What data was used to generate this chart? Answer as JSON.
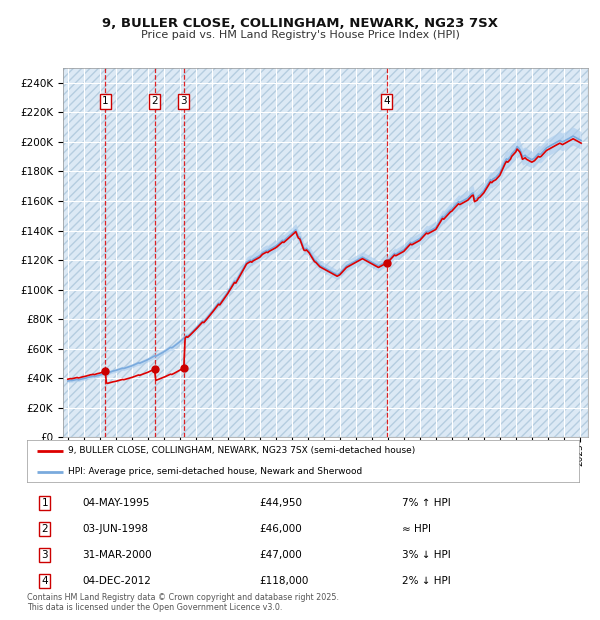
{
  "title": "9, BULLER CLOSE, COLLINGHAM, NEWARK, NG23 7SX",
  "subtitle": "Price paid vs. HM Land Registry's House Price Index (HPI)",
  "plot_bg_color": "#dce9f5",
  "grid_color": "#ffffff",
  "ylim": [
    0,
    250000
  ],
  "yticks": [
    0,
    20000,
    40000,
    60000,
    80000,
    100000,
    120000,
    140000,
    160000,
    180000,
    200000,
    220000,
    240000
  ],
  "xlim_start": 1992.7,
  "xlim_end": 2025.5,
  "sales": [
    {
      "year": 1995.34,
      "price": 44950,
      "label": "1"
    },
    {
      "year": 1998.42,
      "price": 46000,
      "label": "2"
    },
    {
      "year": 2000.25,
      "price": 47000,
      "label": "3"
    },
    {
      "year": 2012.92,
      "price": 118000,
      "label": "4"
    }
  ],
  "hpi_line_color": "#7aaadd",
  "hpi_band_color": "#aaccee",
  "sale_line_color": "#dd0000",
  "sale_dot_color": "#cc0000",
  "legend_sale_label": "9, BULLER CLOSE, COLLINGHAM, NEWARK, NG23 7SX (semi-detached house)",
  "legend_hpi_label": "HPI: Average price, semi-detached house, Newark and Sherwood",
  "table_rows": [
    {
      "num": "1",
      "date": "04-MAY-1995",
      "price": "£44,950",
      "relation": "7% ↑ HPI"
    },
    {
      "num": "2",
      "date": "03-JUN-1998",
      "price": "£46,000",
      "relation": "≈ HPI"
    },
    {
      "num": "3",
      "date": "31-MAR-2000",
      "price": "£47,000",
      "relation": "3% ↓ HPI"
    },
    {
      "num": "4",
      "date": "04-DEC-2012",
      "price": "£118,000",
      "relation": "2% ↓ HPI"
    }
  ],
  "footer": "Contains HM Land Registry data © Crown copyright and database right 2025.\nThis data is licensed under the Open Government Licence v3.0.",
  "hpi_monthly": {
    "start_year": 1993.0,
    "step": 0.0833,
    "values": [
      38000,
      38200,
      38400,
      38300,
      38500,
      38700,
      38900,
      39100,
      38800,
      39000,
      39300,
      39500,
      39700,
      39900,
      40100,
      40400,
      40600,
      40900,
      41000,
      41200,
      41000,
      41300,
      41600,
      41800,
      42000,
      42300,
      42700,
      43100,
      43500,
      43800,
      43600,
      43900,
      44200,
      44500,
      44800,
      45000,
      45200,
      45500,
      45800,
      46100,
      46400,
      46700,
      46500,
      46800,
      47100,
      47400,
      47700,
      48000,
      48300,
      48700,
      49100,
      49500,
      49900,
      50300,
      50100,
      50500,
      50900,
      51300,
      51700,
      52100,
      52500,
      53000,
      53500,
      54000,
      54500,
      55000,
      54800,
      55300,
      55800,
      56300,
      56800,
      57300,
      57800,
      58400,
      59000,
      59600,
      60200,
      60800,
      60500,
      61100,
      61800,
      62500,
      63200,
      63900,
      64600,
      65400,
      66200,
      67000,
      67800,
      68600,
      68300,
      69100,
      70000,
      70900,
      71800,
      72700,
      73600,
      74600,
      75600,
      76600,
      77600,
      78600,
      78300,
      79300,
      80400,
      81500,
      82600,
      83700,
      84800,
      86000,
      87200,
      88400,
      89600,
      90800,
      90400,
      91700,
      93000,
      94300,
      95600,
      96900,
      98200,
      99700,
      101200,
      102700,
      104200,
      105700,
      105300,
      106900,
      108500,
      110100,
      111700,
      113300,
      114900,
      116600,
      118300,
      119000,
      119500,
      120000,
      119600,
      120500,
      121000,
      121500,
      122000,
      122500,
      123000,
      124000,
      125000,
      125500,
      126000,
      126500,
      126200,
      127000,
      127500,
      128000,
      128500,
      129000,
      129500,
      130200,
      131000,
      131800,
      132600,
      133400,
      133100,
      133900,
      134700,
      135500,
      136300,
      137100,
      137900,
      138800,
      139700,
      140500,
      138000,
      136000,
      135500,
      133000,
      130500,
      128000,
      127500,
      128000,
      127000,
      126000,
      124500,
      123000,
      121500,
      120000,
      119500,
      118500,
      117500,
      116500,
      116000,
      115500,
      115000,
      114500,
      114000,
      113500,
      113000,
      112500,
      112000,
      111500,
      111000,
      110500,
      110000,
      110500,
      111000,
      112000,
      113000,
      114000,
      115000,
      116000,
      116500,
      117000,
      117500,
      118000,
      118500,
      119000,
      119500,
      120000,
      120500,
      121000,
      121500,
      122000,
      121500,
      121000,
      120500,
      120000,
      119500,
      119000,
      118500,
      118000,
      117500,
      117000,
      116500,
      116000,
      116500,
      117000,
      117500,
      118000,
      118500,
      119000,
      119500,
      120500,
      121500,
      122500,
      123500,
      124500,
      124000,
      124500,
      125000,
      125500,
      126000,
      126500,
      127000,
      128000,
      129000,
      130000,
      131000,
      132000,
      131500,
      132000,
      132500,
      133000,
      133500,
      134000,
      134500,
      135500,
      136500,
      137500,
      138500,
      139500,
      139000,
      139500,
      140000,
      140500,
      141000,
      141500,
      142000,
      143500,
      145000,
      146500,
      148000,
      149500,
      149000,
      150000,
      151000,
      152000,
      153000,
      154000,
      154500,
      155500,
      156500,
      157500,
      158500,
      159500,
      159000,
      159500,
      160000,
      160500,
      161000,
      161500,
      162000,
      163000,
      164000,
      165000,
      165500,
      161000,
      161500,
      162000,
      163500,
      164000,
      165000,
      166000,
      167000,
      168500,
      170000,
      171500,
      173000,
      174500,
      174000,
      175000,
      175500,
      176000,
      177000,
      178000,
      179000,
      181000,
      183000,
      185000,
      187000,
      188500,
      188000,
      189000,
      190000,
      192000,
      193000,
      194000,
      195000,
      197000,
      196000,
      195000,
      193000,
      190000,
      190500,
      191000,
      190000,
      189500,
      189000,
      188500,
      188000,
      188500,
      189000,
      190000,
      191000,
      192000,
      191500,
      192000,
      193000,
      194000,
      195000,
      196000,
      196500,
      197000,
      197500,
      198000,
      198500,
      199000,
      199500,
      200000,
      200500,
      201000,
      200500,
      200000,
      200500,
      201000,
      201500,
      202000,
      202500,
      203000,
      203500,
      204000,
      203500,
      203000,
      202500,
      202000,
      201500,
      201000
    ]
  }
}
